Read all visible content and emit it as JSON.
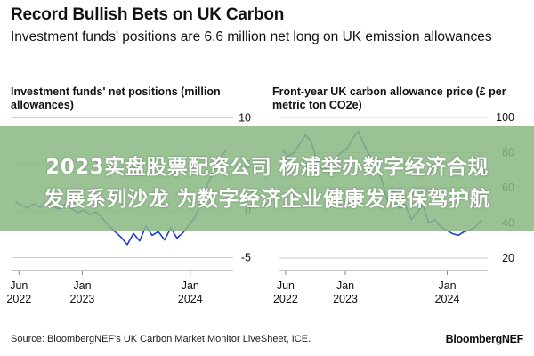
{
  "title": "Record Bullish Bets on UK Carbon",
  "subtitle": "Investment funds' positions are 6.6 million net long on UK emission allowances",
  "banner": {
    "line1": "2023实盘股票配资公司 杨浦举办数字经济合规",
    "line2": "发展系列沙龙 为数字经济企业健康发展保驾护航"
  },
  "source": "Source: BloombergNEF's UK Carbon Market Monitor LiveSheet, ICE.",
  "brand": "BloombergNEF",
  "colors": {
    "line": "#1f3fd0",
    "banner": "#89b883",
    "axis": "#cccccc"
  },
  "chart_data": [
    {
      "type": "line",
      "title": "Investment funds' net positions (million allowances)",
      "x_ticks": [
        {
          "date": "2022-06",
          "line1": "Jun",
          "line2": "2022"
        },
        {
          "date": "2023-01",
          "line1": "Jan",
          "line2": "2023"
        },
        {
          "date": "2024-01",
          "line1": "Jan",
          "line2": "2024"
        }
      ],
      "y_ticks": [
        10,
        5,
        0,
        -5
      ],
      "ylim": [
        -6,
        11
      ],
      "xlim": [
        "2022-05-10",
        "2024-05-25"
      ],
      "series": [
        {
          "x": [
            "2022-05-20",
            "2022-06-10",
            "2022-07-01",
            "2022-07-22",
            "2022-08-12",
            "2022-09-02",
            "2022-09-23",
            "2022-10-14",
            "2022-11-04",
            "2022-11-25",
            "2022-12-16",
            "2023-01-06",
            "2023-01-27",
            "2023-02-17",
            "2023-03-10",
            "2023-03-31",
            "2023-04-21",
            "2023-05-12",
            "2023-06-02",
            "2023-06-23",
            "2023-07-14",
            "2023-08-04",
            "2023-08-25",
            "2023-09-15",
            "2023-10-06",
            "2023-10-27",
            "2023-11-17",
            "2023-12-08",
            "2023-12-29",
            "2024-01-19",
            "2024-02-09",
            "2024-03-01",
            "2024-03-22",
            "2024-04-12",
            "2024-05-03"
          ],
          "y": [
            1.0,
            0.6,
            0.3,
            0.8,
            0.4,
            0.9,
            0.5,
            0.2,
            0.7,
            0.3,
            -0.2,
            0.1,
            -0.4,
            -0.1,
            -0.8,
            -1.5,
            -2.2,
            -2.8,
            -3.6,
            -2.4,
            -3.2,
            -1.6,
            -2.6,
            -2.2,
            -3.1,
            -1.8,
            -2.9,
            -2.3,
            -1.4,
            -0.6,
            1.2,
            3.0,
            4.4,
            5.8,
            6.6
          ]
        }
      ]
    },
    {
      "type": "line",
      "title": "Front-year UK carbon allowance price (£ per metric ton CO2e)",
      "x_ticks": [
        {
          "date": "2022-06",
          "line1": "Jun",
          "line2": "2022"
        },
        {
          "date": "2023-01",
          "line1": "Jan",
          "line2": "2023"
        },
        {
          "date": "2024-01",
          "line1": "Jan",
          "line2": "2024"
        }
      ],
      "y_ticks": [
        100,
        80,
        60,
        40,
        20
      ],
      "ylim": [
        15,
        105
      ],
      "xlim": [
        "2022-05-10",
        "2024-05-25"
      ],
      "series": [
        {
          "x": [
            "2022-05-20",
            "2022-06-10",
            "2022-07-01",
            "2022-07-22",
            "2022-08-12",
            "2022-09-02",
            "2022-09-23",
            "2022-10-14",
            "2022-11-04",
            "2022-11-25",
            "2022-12-16",
            "2023-01-06",
            "2023-01-27",
            "2023-02-17",
            "2023-03-10",
            "2023-03-31",
            "2023-04-21",
            "2023-05-12",
            "2023-06-02",
            "2023-06-23",
            "2023-07-14",
            "2023-08-04",
            "2023-08-25",
            "2023-09-15",
            "2023-10-06",
            "2023-10-27",
            "2023-11-17",
            "2023-12-08",
            "2023-12-29",
            "2024-01-19",
            "2024-02-09",
            "2024-03-01",
            "2024-03-22",
            "2024-04-12",
            "2024-05-03"
          ],
          "y": [
            82,
            78,
            80,
            85,
            90,
            86,
            74,
            70,
            72,
            76,
            80,
            82,
            88,
            92,
            84,
            78,
            74,
            64,
            52,
            58,
            48,
            50,
            42,
            46,
            50,
            40,
            42,
            38,
            36,
            34,
            33,
            35,
            36,
            38,
            42
          ]
        }
      ]
    }
  ]
}
